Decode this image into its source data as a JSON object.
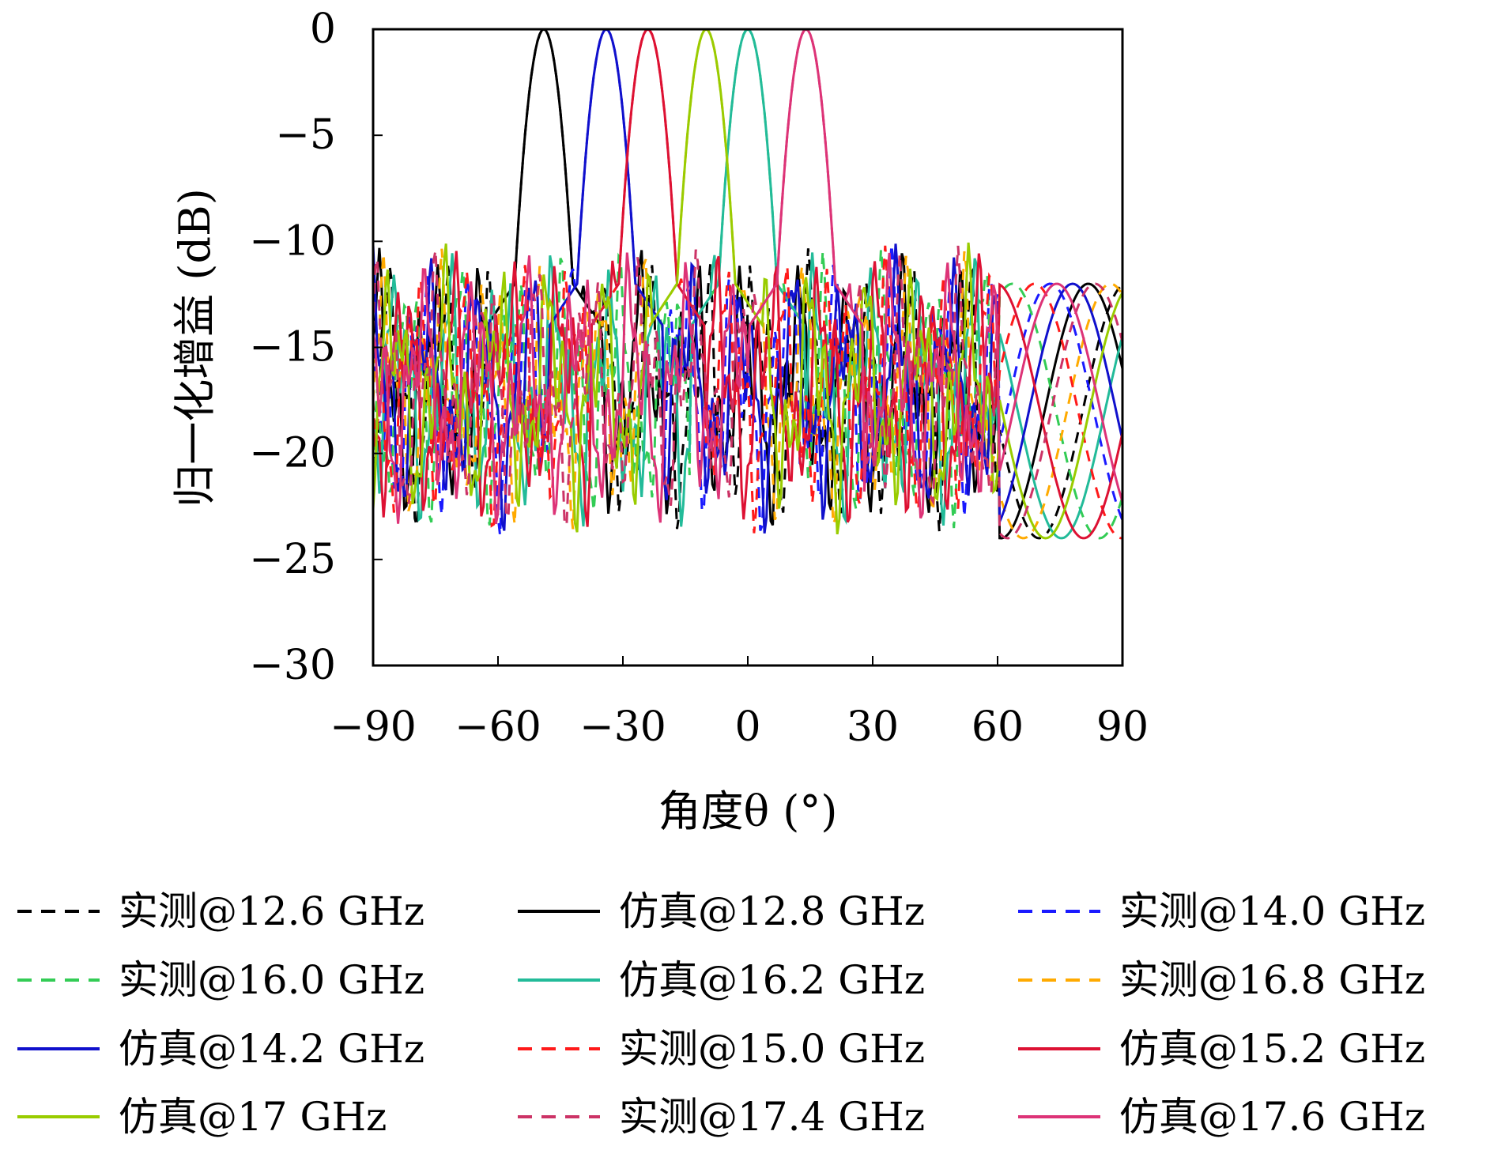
{
  "chart_data": {
    "type": "line",
    "title": "",
    "xlabel": "角度θ (°)",
    "ylabel": "归一化增益 (dB)",
    "xlim": [
      -90,
      90
    ],
    "ylim": [
      -30,
      0
    ],
    "xticks": [
      -90,
      -60,
      -30,
      0,
      30,
      60,
      90
    ],
    "yticks": [
      0,
      -5,
      -10,
      -15,
      -20,
      -25,
      -30
    ],
    "xtick_labels": [
      "−90",
      "−60",
      "−30",
      "0",
      "30",
      "60",
      "90"
    ],
    "ytick_labels": [
      "0",
      "−5",
      "−10",
      "−15",
      "−20",
      "−25",
      "−30"
    ],
    "grid": false,
    "legend_placement": "bottom",
    "series": [
      {
        "name": "实测@12.6 GHz",
        "color": "#000000",
        "style": "dashed",
        "steer": -49
      },
      {
        "name": "仿真@12.8 GHz",
        "color": "#000000",
        "style": "solid",
        "steer": -49
      },
      {
        "name": "实测@14.0 GHz",
        "color": "#1a1aff",
        "style": "dashed",
        "steer": -34
      },
      {
        "name": "实测@16.0 GHz",
        "color": "#33cc55",
        "style": "dashed",
        "steer": 0
      },
      {
        "name": "仿真@16.2 GHz",
        "color": "#22bb99",
        "style": "solid",
        "steer": 0
      },
      {
        "name": "实测@16.8 GHz",
        "color": "#ffaa00",
        "style": "dashed",
        "steer": -10
      },
      {
        "name": "仿真@14.2 GHz",
        "color": "#1010cc",
        "style": "solid",
        "steer": -34
      },
      {
        "name": "实测@15.0 GHz",
        "color": "#ff1a1a",
        "style": "dashed",
        "steer": -24
      },
      {
        "name": "仿真@15.2 GHz",
        "color": "#dd1133",
        "style": "solid",
        "steer": -24
      },
      {
        "name": "仿真@17 GHz",
        "color": "#99cc00",
        "style": "solid",
        "steer": -10
      },
      {
        "name": "实测@17.4 GHz",
        "color": "#cc3366",
        "style": "dashed",
        "steer": 14
      },
      {
        "name": "仿真@17.6 GHz",
        "color": "#dd3377",
        "style": "solid",
        "steer": 14
      }
    ]
  }
}
